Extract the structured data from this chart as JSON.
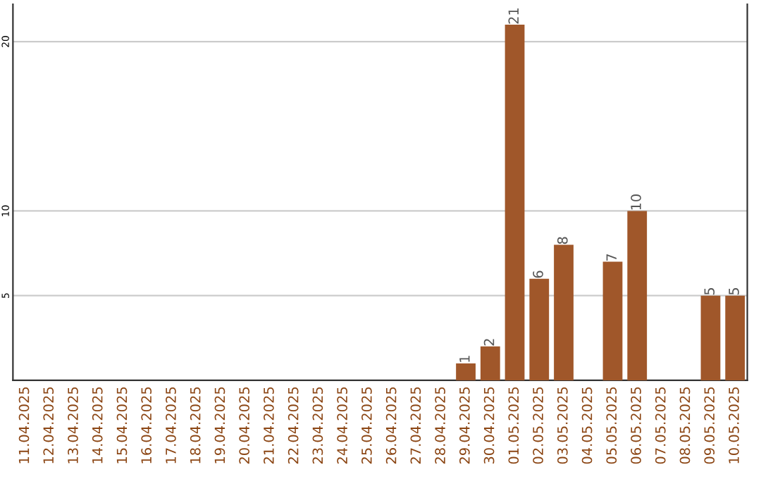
{
  "chart_data": {
    "type": "bar",
    "categories": [
      "11.04.2025",
      "12.04.2025",
      "13.04.2025",
      "14.04.2025",
      "15.04.2025",
      "16.04.2025",
      "17.04.2025",
      "18.04.2025",
      "19.04.2025",
      "20.04.2025",
      "21.04.2025",
      "22.04.2025",
      "23.04.2025",
      "24.04.2025",
      "25.04.2025",
      "26.04.2025",
      "27.04.2025",
      "28.04.2025",
      "29.04.2025",
      "30.04.2025",
      "01.05.2025",
      "02.05.2025",
      "03.05.2025",
      "04.05.2025",
      "05.05.2025",
      "06.05.2025",
      "07.05.2025",
      "08.05.2025",
      "09.05.2025",
      "10.05.2025"
    ],
    "values": [
      0,
      0,
      0,
      0,
      0,
      0,
      0,
      0,
      0,
      0,
      0,
      0,
      0,
      0,
      0,
      0,
      0,
      0,
      1,
      2,
      21,
      6,
      8,
      0,
      7,
      10,
      0,
      0,
      5,
      5
    ],
    "value_labels": [
      null,
      null,
      null,
      null,
      null,
      null,
      null,
      null,
      null,
      null,
      null,
      null,
      null,
      null,
      null,
      null,
      null,
      null,
      "1",
      "2",
      "21",
      "6",
      "8",
      null,
      "7",
      "10",
      null,
      null,
      "5",
      "5"
    ],
    "color": "#a0572a",
    "ylim": [
      0,
      22.2
    ],
    "yticks": [
      5,
      10,
      20
    ],
    "grid": "y"
  }
}
